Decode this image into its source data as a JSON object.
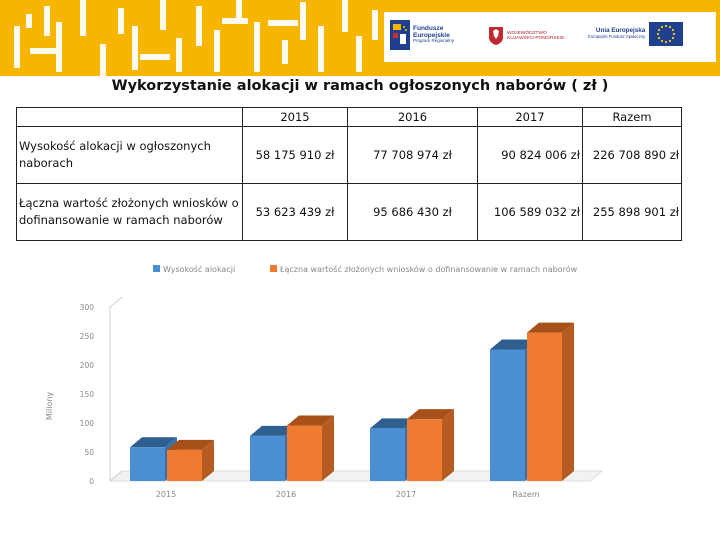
{
  "header": {
    "logos": {
      "fe": {
        "line1": "Fundusze",
        "line2": "Europejskie",
        "sub": "Program Regionalny"
      },
      "kp": {
        "line1": "WOJEWÓDZTWO",
        "line2": "KUJAWSKO-POMORSKIE"
      },
      "ue": {
        "line1": "Unia Europejska",
        "sub": "Europejski Fundusz Społeczny"
      }
    },
    "colors": {
      "banner": "#f7b500",
      "eu_flag": "#1f3f8f",
      "star": "#ffcc00"
    }
  },
  "title": "Wykorzystanie alokacji  w ramach ogłoszonych naborów ( zł )",
  "table": {
    "columns": [
      "",
      "2015",
      "2016",
      "2017",
      "Razem"
    ],
    "rows": [
      {
        "label": "Wysokość alokacji w ogłoszonych naborach",
        "values": [
          "58 175 910 zł",
          "77 708 974 zł",
          "90 824 006 zł",
          "226 708 890 zł"
        ]
      },
      {
        "label": "Łączna wartość złożonych wniosków o  dofinansowanie w ramach naborów",
        "values": [
          "53 623 439 zł",
          "95 686 430  zł",
          "106 589 032 zł",
          "255 898 901 zł"
        ]
      }
    ]
  },
  "chart_data": {
    "type": "bar",
    "categories": [
      "2015",
      "2016",
      "2017",
      "Razem"
    ],
    "series": [
      {
        "name": "Wysokość alokacji",
        "color": "#4a8fd4",
        "top_color": "#2f5f8f",
        "side_color": "#3a70a8",
        "values": [
          58.18,
          77.71,
          90.82,
          226.71
        ]
      },
      {
        "name": "Łączna wartość złożonych wniosków o  dofinansowanie w ramach naborów",
        "color": "#ee7b30",
        "top_color": "#a8501a",
        "side_color": "#b65c22",
        "values": [
          53.62,
          95.69,
          106.59,
          255.9
        ]
      }
    ],
    "ylabel": "Miliony",
    "ylim": [
      0,
      300
    ],
    "yticks": [
      0,
      50,
      100,
      150,
      200,
      250,
      300
    ],
    "legend": "top",
    "grid": false
  }
}
